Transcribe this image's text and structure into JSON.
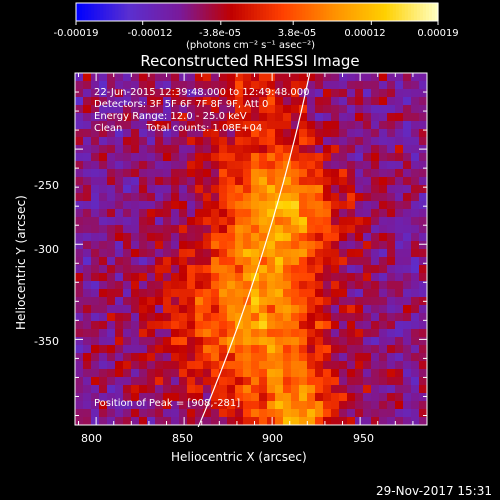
{
  "chart_data": {
    "type": "heatmap",
    "title": "Reconstructed RHESSI Image",
    "xlabel": "Heliocentric X (arcsec)",
    "ylabel": "Heliocentric Y (arcsec)",
    "xlim": [
      788,
      988
    ],
    "ylim": [
      -395,
      -210
    ],
    "x_ticks": [
      "800",
      "850",
      "900",
      "950"
    ],
    "x_tick_values": [
      800,
      850,
      900,
      950
    ],
    "y_ticks": [
      "-250",
      "-300",
      "-350"
    ],
    "y_tick_values": [
      -250,
      -300,
      -350
    ],
    "colorbar": {
      "ticks": [
        "-0.00019",
        "-0.00012",
        "-3.8e-05",
        "3.8e-05",
        "0.00012",
        "0.00019"
      ],
      "tick_values": [
        -0.00019,
        -0.00012,
        -3.8e-05,
        3.8e-05,
        0.00012,
        0.00019
      ],
      "range": [
        -0.00019,
        0.00019
      ],
      "unit_label": "(photons cm⁻² s⁻¹ asec⁻²)",
      "colormap": [
        "#0000ff",
        "#5a2fd0",
        "#7a1a9a",
        "#c00000",
        "#ff4000",
        "#ff9000",
        "#ffd000",
        "#ffffc0"
      ]
    },
    "annotations": {
      "time": "22-Jun-2015 12:39:48.000 to 12:49:48.000",
      "detectors": "Detectors: 3F 5F 6F 7F 8F 9F, Att 0",
      "energy": "Energy Range: 12.0 - 25.0 keV",
      "algorithm": "Clean",
      "counts": "Total counts: 1.08E+04",
      "peak": "Position of Peak = [908,-281]"
    },
    "peak": {
      "x": 908,
      "y": -281
    },
    "limb_visible": true
  },
  "footer_date": "29-Nov-2017 15:31"
}
